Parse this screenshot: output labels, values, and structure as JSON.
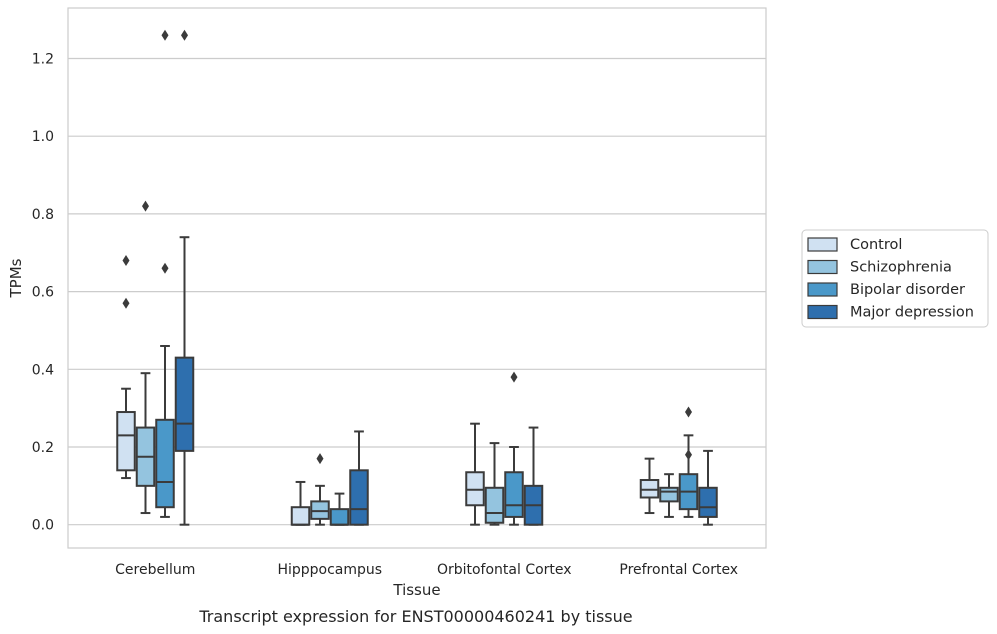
{
  "caption": "Transcript expression for ENST00000460241 by tissue",
  "chart_data": {
    "type": "box",
    "xlabel": "Tissue",
    "ylabel": "TPMs",
    "ylim": [
      -0.06,
      1.33
    ],
    "yticks": [
      "0.0",
      "0.2",
      "0.4",
      "0.6",
      "0.8",
      "1.0",
      "1.2"
    ],
    "grid": "horizontal",
    "legend_position": "right",
    "categories": [
      "Cerebellum",
      "Hipppocampus",
      "Orbitofontal Cortex",
      "Prefrontal Cortex"
    ],
    "series": [
      {
        "name": "Control",
        "color": "#d0e1f2",
        "boxes": [
          {
            "whislo": 0.12,
            "q1": 0.14,
            "med": 0.23,
            "q3": 0.29,
            "whishi": 0.35,
            "fliers": [
              0.57,
              0.68
            ]
          },
          {
            "whislo": 0.0,
            "q1": 0.0,
            "med": 0.0,
            "q3": 0.045,
            "whishi": 0.11,
            "fliers": []
          },
          {
            "whislo": 0.0,
            "q1": 0.05,
            "med": 0.09,
            "q3": 0.135,
            "whishi": 0.26,
            "fliers": []
          },
          {
            "whislo": 0.03,
            "q1": 0.07,
            "med": 0.09,
            "q3": 0.115,
            "whishi": 0.17,
            "fliers": []
          }
        ]
      },
      {
        "name": "Schizophrenia",
        "color": "#94c4df",
        "boxes": [
          {
            "whislo": 0.03,
            "q1": 0.1,
            "med": 0.175,
            "q3": 0.25,
            "whishi": 0.39,
            "fliers": [
              0.82
            ]
          },
          {
            "whislo": 0.0,
            "q1": 0.015,
            "med": 0.035,
            "q3": 0.06,
            "whishi": 0.1,
            "fliers": [
              0.17
            ]
          },
          {
            "whislo": 0.0,
            "q1": 0.005,
            "med": 0.03,
            "q3": 0.095,
            "whishi": 0.21,
            "fliers": []
          },
          {
            "whislo": 0.02,
            "q1": 0.06,
            "med": 0.085,
            "q3": 0.095,
            "whishi": 0.13,
            "fliers": []
          }
        ]
      },
      {
        "name": "Bipolar disorder",
        "color": "#4a98c9",
        "boxes": [
          {
            "whislo": 0.02,
            "q1": 0.045,
            "med": 0.11,
            "q3": 0.27,
            "whishi": 0.46,
            "fliers": [
              0.66,
              1.26
            ]
          },
          {
            "whislo": 0.0,
            "q1": 0.0,
            "med": 0.0,
            "q3": 0.04,
            "whishi": 0.08,
            "fliers": []
          },
          {
            "whislo": 0.0,
            "q1": 0.02,
            "med": 0.05,
            "q3": 0.135,
            "whishi": 0.2,
            "fliers": [
              0.38
            ]
          },
          {
            "whislo": 0.02,
            "q1": 0.04,
            "med": 0.085,
            "q3": 0.13,
            "whishi": 0.23,
            "fliers": [
              0.18,
              0.29
            ]
          }
        ]
      },
      {
        "name": "Major depression",
        "color": "#2e6fae",
        "boxes": [
          {
            "whislo": 0.0,
            "q1": 0.19,
            "med": 0.26,
            "q3": 0.43,
            "whishi": 0.74,
            "fliers": [
              1.26
            ]
          },
          {
            "whislo": 0.0,
            "q1": 0.0,
            "med": 0.04,
            "q3": 0.14,
            "whishi": 0.24,
            "fliers": []
          },
          {
            "whislo": 0.0,
            "q1": 0.0,
            "med": 0.05,
            "q3": 0.1,
            "whishi": 0.25,
            "fliers": []
          },
          {
            "whislo": 0.0,
            "q1": 0.02,
            "med": 0.045,
            "q3": 0.095,
            "whishi": 0.19,
            "fliers": []
          }
        ]
      }
    ]
  }
}
